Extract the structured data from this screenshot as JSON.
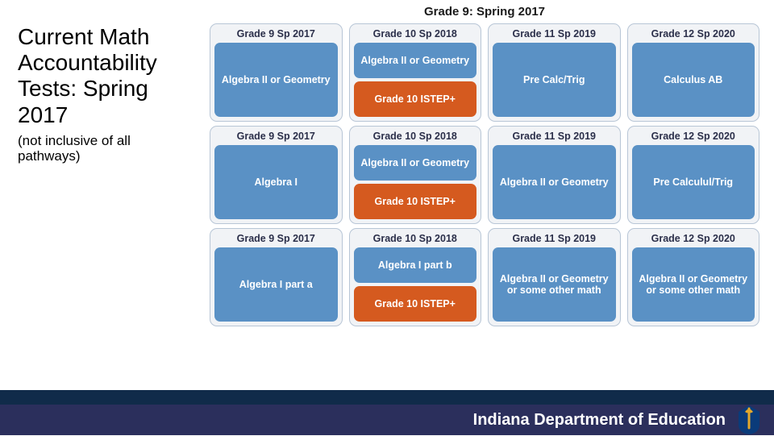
{
  "colors": {
    "card_bg": "#f1f3f6",
    "card_border": "#b8c6d6",
    "blue": "#5a91c5",
    "orange": "#d55a1f",
    "footer_top": "#102b4a",
    "footer_main": "#2b2f5c",
    "logo_blue": "#0a3b7a",
    "logo_gold": "#e3a82b"
  },
  "left": {
    "title": "Current Math Accountability Tests: Spring 2017",
    "subtitle": "(not inclusive of all pathways)"
  },
  "banner": "Grade 9:  Spring 2017",
  "rows": [
    {
      "cards": [
        {
          "header": "Grade 9 Sp 2017",
          "blocks": [
            {
              "text": "Algebra II or Geometry",
              "kind": "blue",
              "size": "tall"
            }
          ]
        },
        {
          "header": "Grade 10 Sp 2018",
          "blocks": [
            {
              "text": "Algebra II or Geometry",
              "kind": "blue",
              "size": "half"
            },
            {
              "text": "Grade 10 ISTEP+",
              "kind": "orange",
              "size": "half"
            }
          ]
        },
        {
          "header": "Grade 11 Sp 2019",
          "blocks": [
            {
              "text": "Pre Calc/Trig",
              "kind": "blue",
              "size": "tall"
            }
          ]
        },
        {
          "header": "Grade 12 Sp 2020",
          "blocks": [
            {
              "text": "Calculus AB",
              "kind": "blue",
              "size": "tall"
            }
          ]
        }
      ]
    },
    {
      "cards": [
        {
          "header": "Grade 9 Sp 2017",
          "blocks": [
            {
              "text": "Algebra I",
              "kind": "blue",
              "size": "tall"
            }
          ]
        },
        {
          "header": "Grade 10 Sp 2018",
          "blocks": [
            {
              "text": "Algebra II or Geometry",
              "kind": "blue",
              "size": "half"
            },
            {
              "text": "Grade 10 ISTEP+",
              "kind": "orange",
              "size": "half"
            }
          ]
        },
        {
          "header": "Grade 11 Sp 2019",
          "blocks": [
            {
              "text": "Algebra II or Geometry",
              "kind": "blue",
              "size": "tall"
            }
          ]
        },
        {
          "header": "Grade 12 Sp 2020",
          "blocks": [
            {
              "text": "Pre Calculul/Trig",
              "kind": "blue",
              "size": "tall"
            }
          ]
        }
      ]
    },
    {
      "cards": [
        {
          "header": "Grade 9 Sp 2017",
          "blocks": [
            {
              "text": "Algebra I part a",
              "kind": "blue",
              "size": "tall"
            }
          ]
        },
        {
          "header": "Grade 10 Sp 2018",
          "blocks": [
            {
              "text": "Algebra I part b",
              "kind": "blue",
              "size": "half"
            },
            {
              "text": "Grade 10 ISTEP+",
              "kind": "orange",
              "size": "half"
            }
          ]
        },
        {
          "header": "Grade 11 Sp 2019",
          "blocks": [
            {
              "text": "Algebra II or Geometry or some other math",
              "kind": "blue",
              "size": "tall"
            }
          ]
        },
        {
          "header": "Grade 12 Sp 2020",
          "blocks": [
            {
              "text": "Algebra II or Geometry or some other math",
              "kind": "blue",
              "size": "tall"
            }
          ]
        }
      ]
    }
  ],
  "footer": {
    "org": "Indiana Department of Education"
  }
}
